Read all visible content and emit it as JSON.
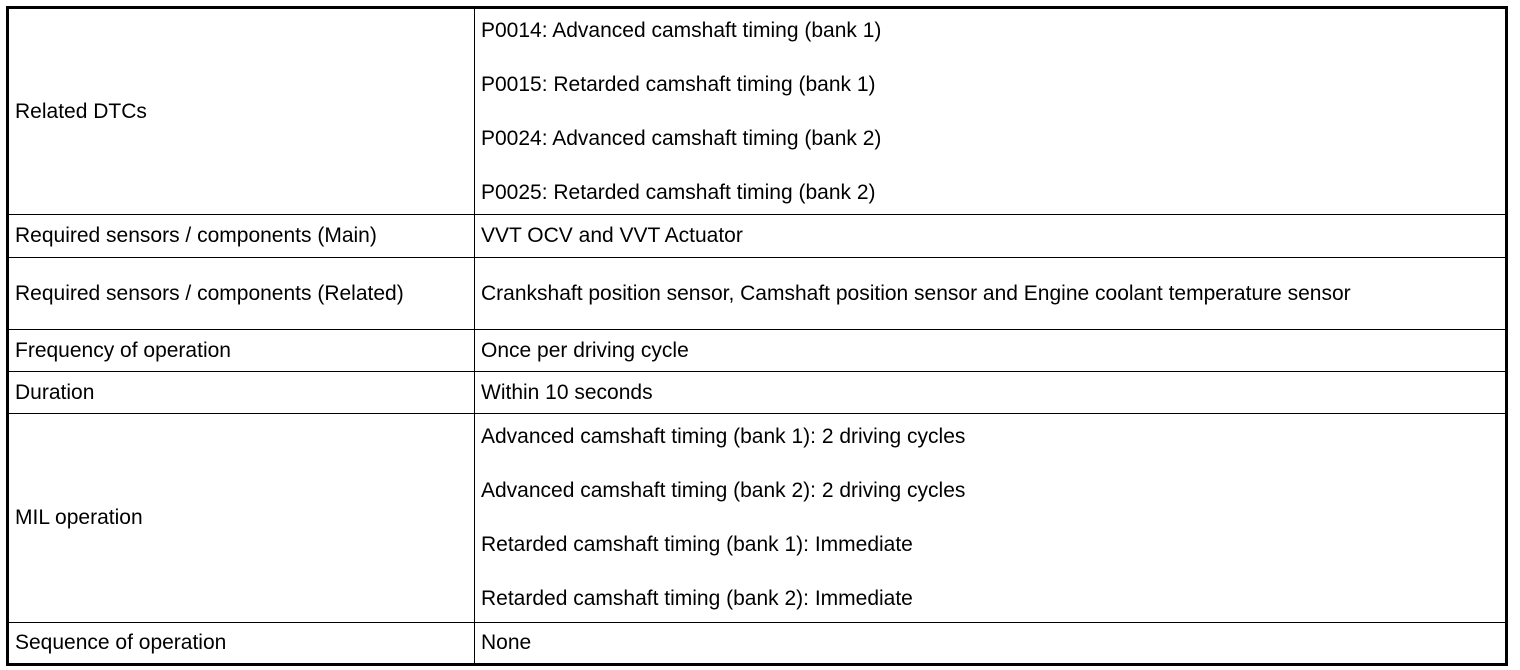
{
  "table": {
    "rows": [
      {
        "label": "Related DTCs",
        "values": [
          "P0014: Advanced camshaft timing (bank 1)",
          "P0015: Retarded camshaft timing (bank 1)",
          "P0024: Advanced camshaft timing (bank 2)",
          "P0025: Retarded camshaft timing (bank 2)"
        ]
      },
      {
        "label": "Required sensors / components (Main)",
        "values": [
          "VVT OCV and VVT Actuator"
        ]
      },
      {
        "label": "Required sensors / components (Related)",
        "values": [
          "Crankshaft position sensor, Camshaft position sensor and Engine coolant temperature sensor"
        ]
      },
      {
        "label": "Frequency of operation",
        "values": [
          "Once per driving cycle"
        ]
      },
      {
        "label": "Duration",
        "values": [
          "Within 10 seconds"
        ]
      },
      {
        "label": "MIL operation",
        "values": [
          "Advanced camshaft timing (bank 1): 2 driving cycles",
          "Advanced camshaft timing (bank 2): 2 driving cycles",
          "Retarded camshaft timing (bank 1): Immediate",
          "Retarded camshaft timing (bank 2): Immediate"
        ]
      },
      {
        "label": "Sequence of operation",
        "values": [
          "None"
        ]
      }
    ]
  }
}
